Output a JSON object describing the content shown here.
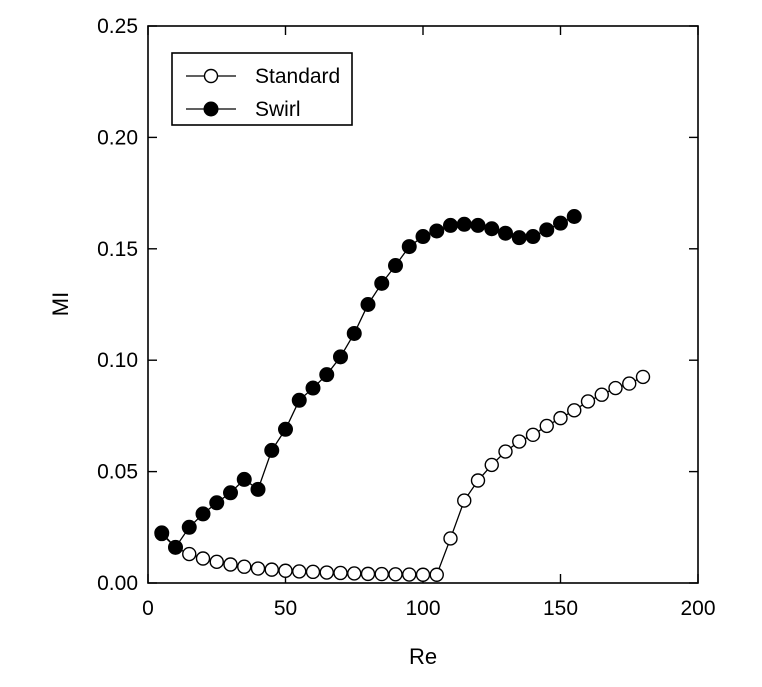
{
  "chart_data": {
    "type": "line",
    "title": "",
    "xlabel": "Re",
    "ylabel": "MI",
    "xlim": [
      0,
      200
    ],
    "ylim": [
      0,
      0.25
    ],
    "xticks": [
      "0",
      "50",
      "100",
      "150",
      "200"
    ],
    "yticks": [
      "0.00",
      "0.05",
      "0.10",
      "0.15",
      "0.20",
      "0.25"
    ],
    "grid": false,
    "legend_position": "top-left",
    "series": [
      {
        "name": "Standard",
        "marker": "open-circle",
        "color": "#000000",
        "x": [
          5,
          10,
          15,
          20,
          25,
          30,
          35,
          40,
          45,
          50,
          55,
          60,
          65,
          70,
          75,
          80,
          85,
          90,
          95,
          100,
          105,
          110,
          115,
          120,
          125,
          130,
          135,
          140,
          145,
          150,
          155,
          160,
          165,
          170,
          175,
          180
        ],
        "y": [
          0.022,
          0.016,
          0.013,
          0.011,
          0.0095,
          0.0083,
          0.0073,
          0.0065,
          0.006,
          0.0055,
          0.0052,
          0.005,
          0.0047,
          0.0045,
          0.0043,
          0.0041,
          0.004,
          0.0039,
          0.0038,
          0.0037,
          0.0037,
          0.02,
          0.037,
          0.046,
          0.053,
          0.059,
          0.0635,
          0.0665,
          0.0705,
          0.074,
          0.0775,
          0.0815,
          0.0845,
          0.0875,
          0.0895,
          0.0925
        ]
      },
      {
        "name": "Swirl",
        "marker": "filled-circle",
        "color": "#000000",
        "x": [
          5,
          10,
          15,
          20,
          25,
          30,
          35,
          40,
          45,
          50,
          55,
          60,
          65,
          70,
          75,
          80,
          85,
          90,
          95,
          100,
          105,
          110,
          115,
          120,
          125,
          130,
          135,
          140,
          145,
          150,
          155
        ],
        "y": [
          0.0225,
          0.016,
          0.025,
          0.031,
          0.036,
          0.0405,
          0.0465,
          0.042,
          0.0595,
          0.069,
          0.082,
          0.0875,
          0.0935,
          0.1015,
          0.112,
          0.125,
          0.1345,
          0.1425,
          0.151,
          0.1555,
          0.158,
          0.1605,
          0.161,
          0.1605,
          0.159,
          0.157,
          0.155,
          0.1555,
          0.1585,
          0.1615,
          0.1645
        ]
      }
    ]
  }
}
